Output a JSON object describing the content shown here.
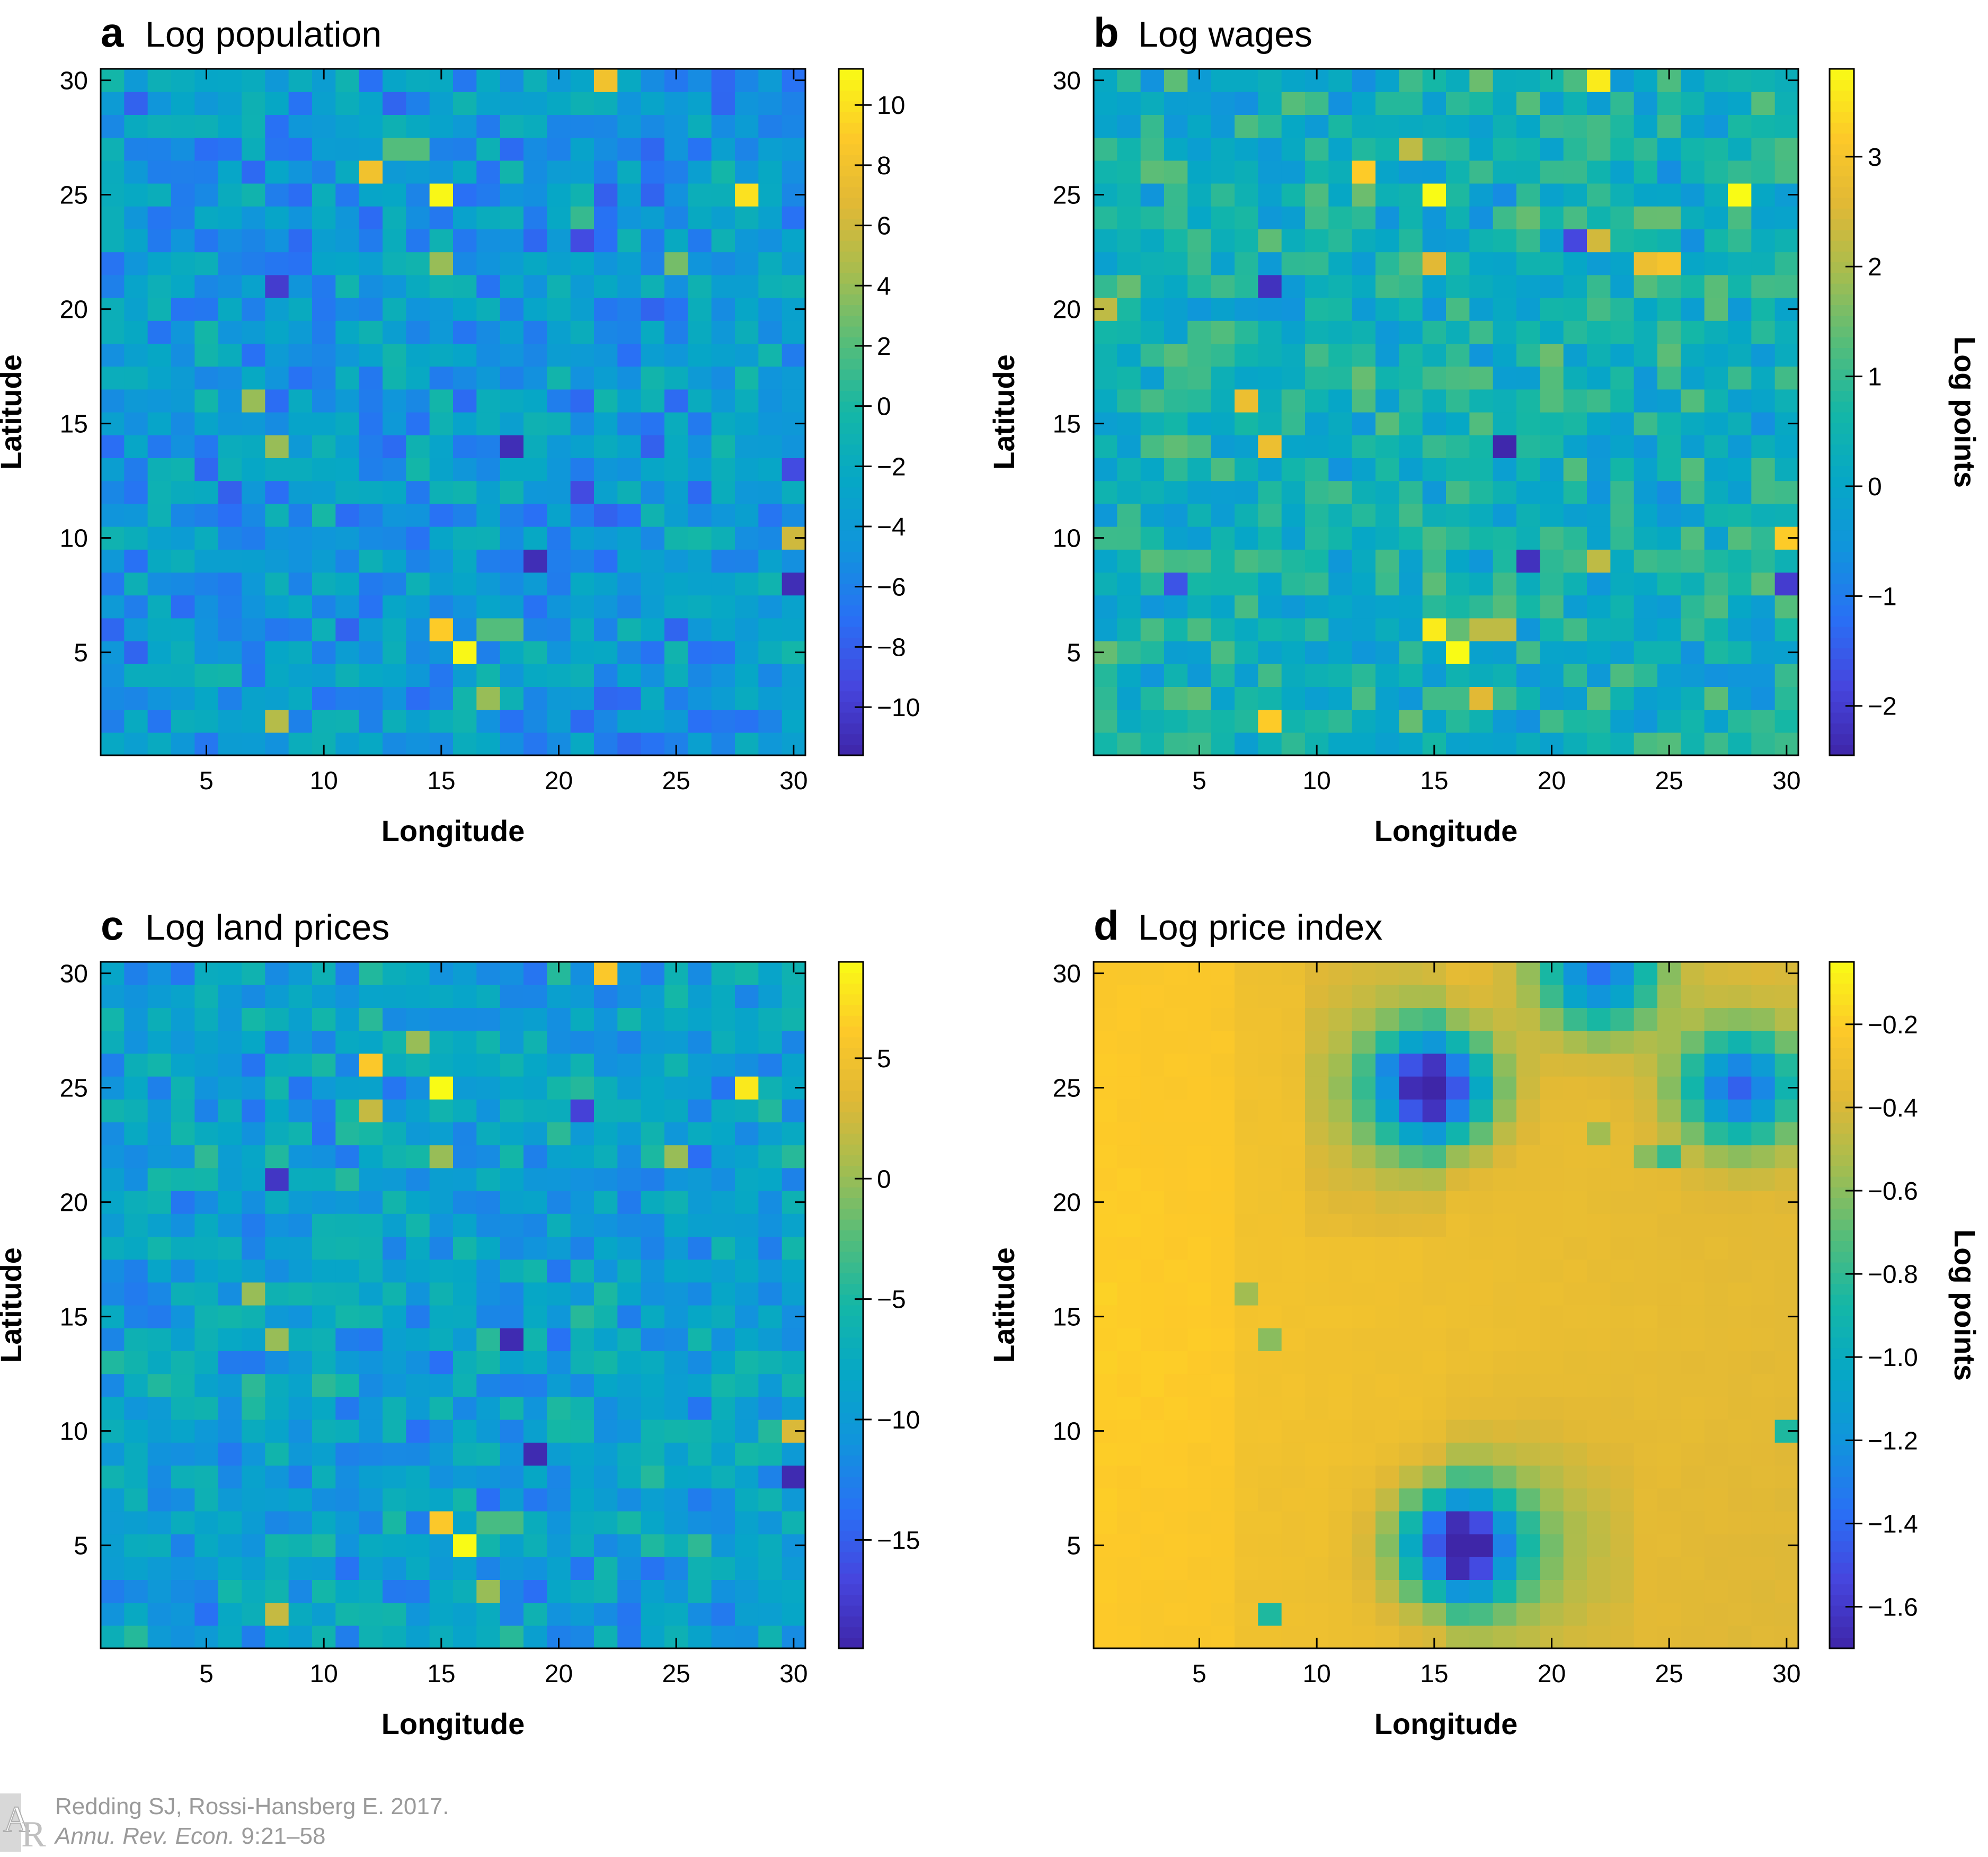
{
  "colors": {
    "low": "#3e26a8",
    "high": "#f9fb15",
    "axis": "#000000",
    "credit": "#9a9a9a"
  },
  "colormap": "parula",
  "chart_data": [
    {
      "type": "heatmap",
      "panel": "a",
      "title": "Log population",
      "xlabel": "Longitude",
      "ylabel": "Latitude",
      "xlim": [
        0.5,
        30.5
      ],
      "ylim": [
        0.5,
        30.5
      ],
      "xticks": [
        5,
        10,
        15,
        20,
        25,
        30
      ],
      "yticks": [
        5,
        10,
        15,
        20,
        25,
        30
      ],
      "grid_size": [
        30,
        30
      ],
      "color_range": [
        -11.6,
        11.2
      ],
      "colorbar": {
        "label": "",
        "ticks": [
          -10,
          -8,
          -6,
          -4,
          -2,
          0,
          2,
          4,
          6,
          8,
          10
        ],
        "labels": [
          "−10",
          "−8",
          "−6",
          "−4",
          "−2",
          "0",
          "2",
          "4",
          "6",
          "8",
          "10"
        ]
      },
      "background": -4.0,
      "highlights": [
        {
          "x": 22,
          "y": 30,
          "v": 8
        },
        {
          "x": 15,
          "y": 25,
          "v": 11
        },
        {
          "x": 28,
          "y": 25,
          "v": 10
        },
        {
          "x": 12,
          "y": 26,
          "v": 8
        },
        {
          "x": 15,
          "y": 22,
          "v": 4
        },
        {
          "x": 25,
          "y": 22,
          "v": 3
        },
        {
          "x": 8,
          "y": 21,
          "v": -10
        },
        {
          "x": 7,
          "y": 16,
          "v": 4
        },
        {
          "x": 8,
          "y": 14,
          "v": 4
        },
        {
          "x": 18,
          "y": 14,
          "v": -11
        },
        {
          "x": 30,
          "y": 10,
          "v": 6
        },
        {
          "x": 19,
          "y": 9,
          "v": -11
        },
        {
          "x": 30,
          "y": 8,
          "v": -11
        },
        {
          "x": 15,
          "y": 6,
          "v": 9
        },
        {
          "x": 16,
          "y": 5,
          "v": 11
        },
        {
          "x": 17,
          "y": 3,
          "v": 4
        },
        {
          "x": 8,
          "y": 2,
          "v": 5
        },
        {
          "x": 14,
          "y": 27,
          "v": 2
        },
        {
          "x": 13,
          "y": 27,
          "v": 2
        },
        {
          "x": 17,
          "y": 6,
          "v": 2
        },
        {
          "x": 18,
          "y": 6,
          "v": 2
        },
        {
          "x": 21,
          "y": 23,
          "v": -9
        },
        {
          "x": 30,
          "y": 13,
          "v": -9
        },
        {
          "x": 21,
          "y": 12,
          "v": -9
        },
        {
          "x": 21,
          "y": 24,
          "v": 1
        }
      ]
    },
    {
      "type": "heatmap",
      "panel": "b",
      "title": "Log wages",
      "xlabel": "Longitude",
      "ylabel": "Latitude",
      "xlim": [
        0.5,
        30.5
      ],
      "ylim": [
        0.5,
        30.5
      ],
      "xticks": [
        5,
        10,
        15,
        20,
        25,
        30
      ],
      "yticks": [
        5,
        10,
        15,
        20,
        25,
        30
      ],
      "grid_size": [
        30,
        30
      ],
      "color_range": [
        -2.45,
        3.8
      ],
      "colorbar": {
        "label": "Log points",
        "ticks": [
          -2,
          -1,
          0,
          1,
          2,
          3
        ],
        "labels": [
          "−2",
          "−1",
          "0",
          "1",
          "2",
          "3"
        ]
      },
      "background": 0.4,
      "highlights": [
        {
          "x": 22,
          "y": 30,
          "v": 3.6
        },
        {
          "x": 15,
          "y": 25,
          "v": 3.8
        },
        {
          "x": 28,
          "y": 25,
          "v": 3.8
        },
        {
          "x": 12,
          "y": 26,
          "v": 3.2
        },
        {
          "x": 15,
          "y": 22,
          "v": 2.6
        },
        {
          "x": 25,
          "y": 22,
          "v": 3.0
        },
        {
          "x": 24,
          "y": 22,
          "v": 2.8
        },
        {
          "x": 8,
          "y": 21,
          "v": -2.2
        },
        {
          "x": 7,
          "y": 16,
          "v": 2.8
        },
        {
          "x": 8,
          "y": 14,
          "v": 2.8
        },
        {
          "x": 18,
          "y": 14,
          "v": -2.4
        },
        {
          "x": 30,
          "y": 10,
          "v": 3.2
        },
        {
          "x": 19,
          "y": 9,
          "v": -2.2
        },
        {
          "x": 30,
          "y": 8,
          "v": -2.0
        },
        {
          "x": 15,
          "y": 6,
          "v": 3.6
        },
        {
          "x": 16,
          "y": 5,
          "v": 3.8
        },
        {
          "x": 17,
          "y": 3,
          "v": 2.6
        },
        {
          "x": 8,
          "y": 2,
          "v": 3.2
        },
        {
          "x": 22,
          "y": 23,
          "v": 2.4
        },
        {
          "x": 14,
          "y": 27,
          "v": 2.2
        },
        {
          "x": 1,
          "y": 20,
          "v": 2.2
        },
        {
          "x": 22,
          "y": 9,
          "v": 2.2
        },
        {
          "x": 17,
          "y": 6,
          "v": 2.2
        },
        {
          "x": 18,
          "y": 6,
          "v": 2.2
        },
        {
          "x": 21,
          "y": 23,
          "v": -1.8
        },
        {
          "x": 4,
          "y": 8,
          "v": -1.6
        }
      ]
    },
    {
      "type": "heatmap",
      "panel": "c",
      "title": "Log land prices",
      "xlabel": "Longitude",
      "ylabel": "Latitude",
      "xlim": [
        0.5,
        30.5
      ],
      "ylim": [
        0.5,
        30.5
      ],
      "xticks": [
        5,
        10,
        15,
        20,
        25,
        30
      ],
      "yticks": [
        5,
        10,
        15,
        20,
        25,
        30
      ],
      "grid_size": [
        30,
        30
      ],
      "color_range": [
        -19.5,
        9.0
      ],
      "colorbar": {
        "label": "",
        "ticks": [
          -15,
          -10,
          -5,
          0,
          5
        ],
        "labels": [
          "−15",
          "−10",
          "−5",
          "0",
          "5"
        ]
      },
      "background": -9.0,
      "highlights": [
        {
          "x": 22,
          "y": 30,
          "v": 6
        },
        {
          "x": 15,
          "y": 25,
          "v": 9
        },
        {
          "x": 28,
          "y": 25,
          "v": 8
        },
        {
          "x": 12,
          "y": 26,
          "v": 6
        },
        {
          "x": 14,
          "y": 27,
          "v": 0
        },
        {
          "x": 15,
          "y": 22,
          "v": 0
        },
        {
          "x": 25,
          "y": 22,
          "v": 0
        },
        {
          "x": 8,
          "y": 21,
          "v": -18
        },
        {
          "x": 7,
          "y": 16,
          "v": 0
        },
        {
          "x": 8,
          "y": 14,
          "v": 0
        },
        {
          "x": 18,
          "y": 14,
          "v": -19
        },
        {
          "x": 30,
          "y": 10,
          "v": 3
        },
        {
          "x": 19,
          "y": 9,
          "v": -19
        },
        {
          "x": 30,
          "y": 8,
          "v": -19
        },
        {
          "x": 15,
          "y": 6,
          "v": 6
        },
        {
          "x": 16,
          "y": 5,
          "v": 9
        },
        {
          "x": 17,
          "y": 3,
          "v": 0
        },
        {
          "x": 8,
          "y": 2,
          "v": 2
        },
        {
          "x": 21,
          "y": 24,
          "v": -17
        },
        {
          "x": 12,
          "y": 24,
          "v": 2
        },
        {
          "x": 17,
          "y": 6,
          "v": -3
        },
        {
          "x": 18,
          "y": 6,
          "v": -3
        }
      ]
    },
    {
      "type": "heatmap",
      "panel": "d",
      "title": "Log price index",
      "xlabel": "Longitude",
      "ylabel": "Latitude",
      "xlim": [
        0.5,
        30.5
      ],
      "ylim": [
        0.5,
        30.5
      ],
      "xticks": [
        5,
        10,
        15,
        20,
        25,
        30
      ],
      "yticks": [
        5,
        10,
        15,
        20,
        25,
        30
      ],
      "grid_size": [
        30,
        30
      ],
      "color_range": [
        -1.7,
        -0.05
      ],
      "colorbar": {
        "label": "Log points",
        "ticks": [
          -1.6,
          -1.4,
          -1.2,
          -1.0,
          -0.8,
          -0.6,
          -0.4,
          -0.2
        ],
        "labels": [
          "−1.6",
          "−1.4",
          "−1.2",
          "−1.0",
          "−0.8",
          "−0.6",
          "−0.4",
          "−0.2"
        ]
      },
      "background": -0.3,
      "centers": [
        {
          "x": 15,
          "y": 25,
          "v": -1.65
        },
        {
          "x": 16,
          "y": 5,
          "v": -1.65
        },
        {
          "x": 28,
          "y": 25,
          "v": -1.35
        },
        {
          "x": 22,
          "y": 30,
          "v": -1.3
        }
      ],
      "highlights": [
        {
          "x": 13,
          "y": 26,
          "v": -1.25
        },
        {
          "x": 15,
          "y": 6,
          "v": -1.35
        },
        {
          "x": 8,
          "y": 2,
          "v": -0.85
        },
        {
          "x": 30,
          "y": 10,
          "v": -0.85
        },
        {
          "x": 25,
          "y": 22,
          "v": -0.8
        },
        {
          "x": 24,
          "y": 22,
          "v": -0.6
        },
        {
          "x": 22,
          "y": 23,
          "v": -0.55
        },
        {
          "x": 7,
          "y": 16,
          "v": -0.55
        },
        {
          "x": 8,
          "y": 14,
          "v": -0.6
        }
      ]
    }
  ],
  "credit": {
    "line1": "Redding SJ, Rossi-Hansberg E. 2017.",
    "line2_italic": "Annu. Rev. Econ.",
    "line2_rest": " 9:21–58"
  }
}
